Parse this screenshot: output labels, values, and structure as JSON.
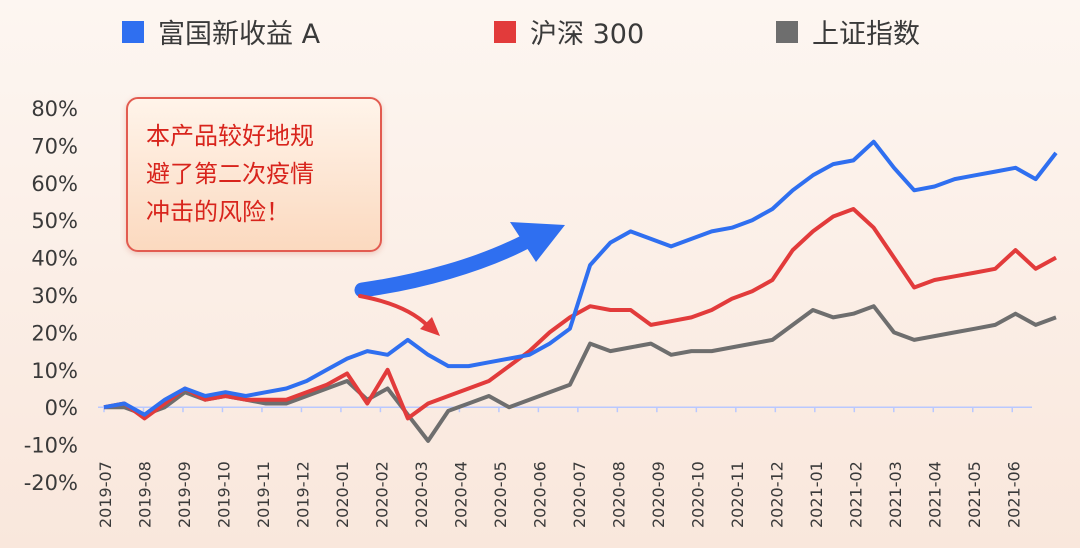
{
  "legend": [
    {
      "label": "富国新收益 A",
      "color": "#2f6ff0"
    },
    {
      "label": "沪深 300",
      "color": "#e23b3b"
    },
    {
      "label": "上证指数",
      "color": "#6e6e6e"
    }
  ],
  "annotation": {
    "lines": [
      "本产品较好地规",
      "避了第二次疫情",
      "冲击的风险！"
    ]
  },
  "chart_data": {
    "type": "line",
    "title": "",
    "xlabel": "",
    "ylabel": "",
    "ylim": [
      -20,
      80
    ],
    "ytick_labels": [
      "80%",
      "70%",
      "60%",
      "50%",
      "40%",
      "30%",
      "20%",
      "10%",
      "0%",
      "-10%",
      "-20%"
    ],
    "ytick_values": [
      80,
      70,
      60,
      50,
      40,
      30,
      20,
      10,
      0,
      -10,
      -20
    ],
    "categories": [
      "2019-07",
      "2019-08",
      "2019-09",
      "2019-10",
      "2019-11",
      "2019-12",
      "2020-01",
      "2020-02",
      "2020-03",
      "2020-04",
      "2020-05",
      "2020-06",
      "2020-07",
      "2020-08",
      "2020-09",
      "2020-10",
      "2020-11",
      "2020-12",
      "2021-01",
      "2021-02",
      "2021-03",
      "2021-04",
      "2021-05",
      "2021-06"
    ],
    "x": [
      "2019-07",
      "2019-07b",
      "2019-08",
      "2019-08b",
      "2019-09",
      "2019-09b",
      "2019-10",
      "2019-10b",
      "2019-11",
      "2019-11b",
      "2019-12",
      "2019-12b",
      "2020-01",
      "2020-01b",
      "2020-02",
      "2020-02b",
      "2020-03",
      "2020-03b",
      "2020-04",
      "2020-04b",
      "2020-05",
      "2020-05b",
      "2020-06",
      "2020-06b",
      "2020-07",
      "2020-07b",
      "2020-08",
      "2020-08b",
      "2020-09",
      "2020-09b",
      "2020-10",
      "2020-10b",
      "2020-11",
      "2020-11b",
      "2020-12",
      "2020-12b",
      "2021-01",
      "2021-01b",
      "2021-02",
      "2021-02b",
      "2021-03",
      "2021-03b",
      "2021-04",
      "2021-04b",
      "2021-05",
      "2021-05b",
      "2021-06",
      "2021-06b"
    ],
    "series": [
      {
        "name": "富国新收益 A",
        "color": "#2f6ff0",
        "values": [
          0,
          1,
          -2,
          2,
          5,
          3,
          4,
          3,
          4,
          5,
          7,
          10,
          13,
          15,
          14,
          18,
          14,
          11,
          11,
          12,
          13,
          14,
          17,
          21,
          38,
          44,
          47,
          45,
          43,
          45,
          47,
          48,
          50,
          53,
          58,
          62,
          65,
          66,
          71,
          64,
          58,
          59,
          61,
          62,
          63,
          64,
          61,
          68
        ]
      },
      {
        "name": "沪深 300",
        "color": "#e23b3b",
        "values": [
          0,
          1,
          -3,
          1,
          5,
          2,
          3,
          2,
          2,
          2,
          4,
          6,
          9,
          1,
          10,
          -3,
          1,
          3,
          5,
          7,
          11,
          15,
          20,
          24,
          27,
          26,
          26,
          22,
          23,
          24,
          26,
          29,
          31,
          34,
          42,
          47,
          51,
          53,
          48,
          40,
          32,
          34,
          35,
          36,
          37,
          42,
          37,
          40
        ]
      },
      {
        "name": "上证指数",
        "color": "#6e6e6e",
        "values": [
          0,
          0,
          -2,
          0,
          4,
          2,
          3,
          2,
          1,
          1,
          3,
          5,
          7,
          2,
          5,
          -2,
          -9,
          -1,
          1,
          3,
          0,
          2,
          4,
          6,
          17,
          15,
          16,
          17,
          14,
          15,
          15,
          16,
          17,
          18,
          22,
          26,
          24,
          25,
          27,
          20,
          18,
          19,
          20,
          21,
          22,
          25,
          22,
          24
        ]
      }
    ],
    "grid": false,
    "legend_position": "top"
  }
}
